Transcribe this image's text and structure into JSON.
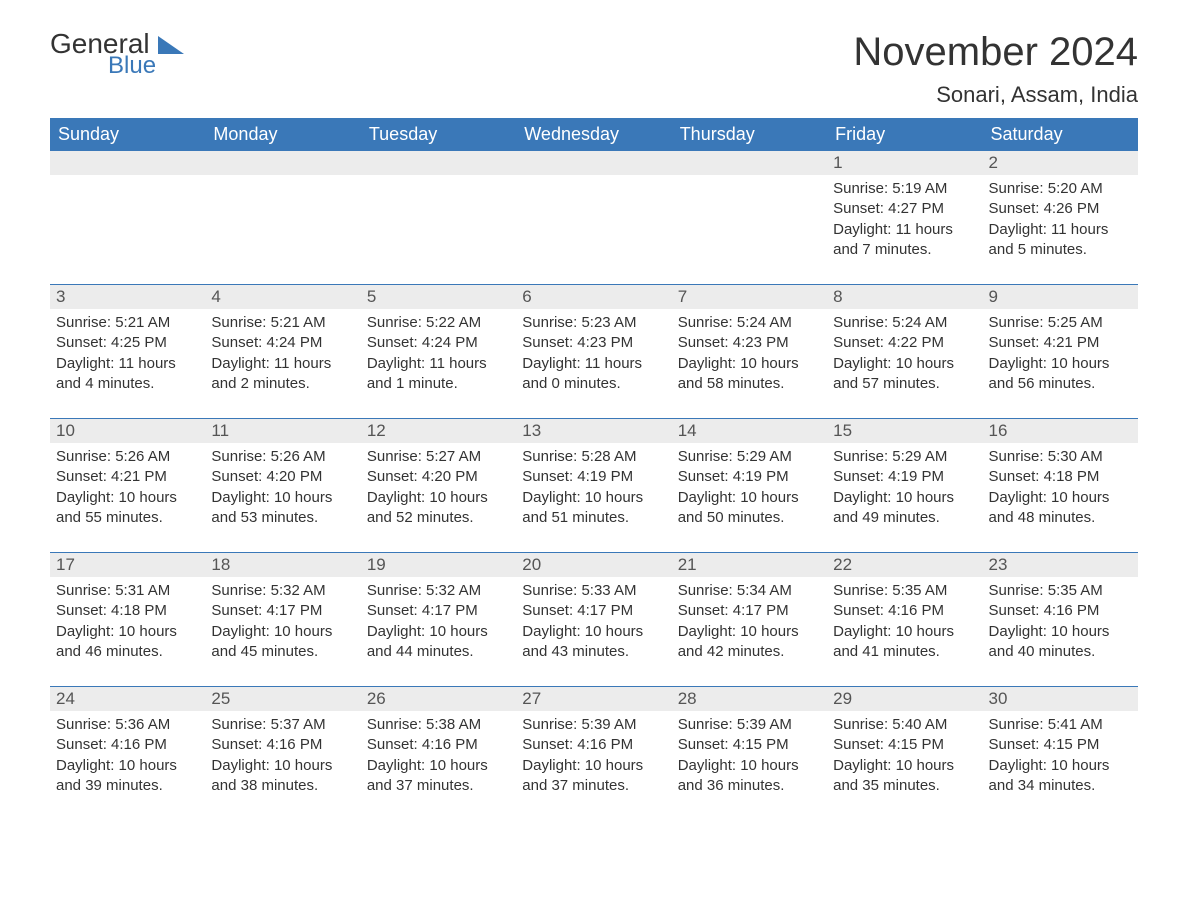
{
  "logo": {
    "general": "General",
    "blue": "Blue",
    "accent_color": "#3a78b8"
  },
  "title": "November 2024",
  "location": "Sonari, Assam, India",
  "colors": {
    "header_bg": "#3a78b8",
    "header_fg": "#ffffff",
    "daynum_bg": "#ececec",
    "text": "#333333",
    "page_bg": "#ffffff",
    "week_separator": "#3a78b8"
  },
  "typography": {
    "title_fontsize": 40,
    "location_fontsize": 22,
    "dow_fontsize": 18,
    "daynum_fontsize": 17,
    "body_fontsize": 15,
    "font_family": "Arial"
  },
  "days_of_week": [
    "Sunday",
    "Monday",
    "Tuesday",
    "Wednesday",
    "Thursday",
    "Friday",
    "Saturday"
  ],
  "weeks": [
    [
      null,
      null,
      null,
      null,
      null,
      {
        "d": "1",
        "sunrise": "Sunrise: 5:19 AM",
        "sunset": "Sunset: 4:27 PM",
        "daylight": "Daylight: 11 hours and 7 minutes."
      },
      {
        "d": "2",
        "sunrise": "Sunrise: 5:20 AM",
        "sunset": "Sunset: 4:26 PM",
        "daylight": "Daylight: 11 hours and 5 minutes."
      }
    ],
    [
      {
        "d": "3",
        "sunrise": "Sunrise: 5:21 AM",
        "sunset": "Sunset: 4:25 PM",
        "daylight": "Daylight: 11 hours and 4 minutes."
      },
      {
        "d": "4",
        "sunrise": "Sunrise: 5:21 AM",
        "sunset": "Sunset: 4:24 PM",
        "daylight": "Daylight: 11 hours and 2 minutes."
      },
      {
        "d": "5",
        "sunrise": "Sunrise: 5:22 AM",
        "sunset": "Sunset: 4:24 PM",
        "daylight": "Daylight: 11 hours and 1 minute."
      },
      {
        "d": "6",
        "sunrise": "Sunrise: 5:23 AM",
        "sunset": "Sunset: 4:23 PM",
        "daylight": "Daylight: 11 hours and 0 minutes."
      },
      {
        "d": "7",
        "sunrise": "Sunrise: 5:24 AM",
        "sunset": "Sunset: 4:23 PM",
        "daylight": "Daylight: 10 hours and 58 minutes."
      },
      {
        "d": "8",
        "sunrise": "Sunrise: 5:24 AM",
        "sunset": "Sunset: 4:22 PM",
        "daylight": "Daylight: 10 hours and 57 minutes."
      },
      {
        "d": "9",
        "sunrise": "Sunrise: 5:25 AM",
        "sunset": "Sunset: 4:21 PM",
        "daylight": "Daylight: 10 hours and 56 minutes."
      }
    ],
    [
      {
        "d": "10",
        "sunrise": "Sunrise: 5:26 AM",
        "sunset": "Sunset: 4:21 PM",
        "daylight": "Daylight: 10 hours and 55 minutes."
      },
      {
        "d": "11",
        "sunrise": "Sunrise: 5:26 AM",
        "sunset": "Sunset: 4:20 PM",
        "daylight": "Daylight: 10 hours and 53 minutes."
      },
      {
        "d": "12",
        "sunrise": "Sunrise: 5:27 AM",
        "sunset": "Sunset: 4:20 PM",
        "daylight": "Daylight: 10 hours and 52 minutes."
      },
      {
        "d": "13",
        "sunrise": "Sunrise: 5:28 AM",
        "sunset": "Sunset: 4:19 PM",
        "daylight": "Daylight: 10 hours and 51 minutes."
      },
      {
        "d": "14",
        "sunrise": "Sunrise: 5:29 AM",
        "sunset": "Sunset: 4:19 PM",
        "daylight": "Daylight: 10 hours and 50 minutes."
      },
      {
        "d": "15",
        "sunrise": "Sunrise: 5:29 AM",
        "sunset": "Sunset: 4:19 PM",
        "daylight": "Daylight: 10 hours and 49 minutes."
      },
      {
        "d": "16",
        "sunrise": "Sunrise: 5:30 AM",
        "sunset": "Sunset: 4:18 PM",
        "daylight": "Daylight: 10 hours and 48 minutes."
      }
    ],
    [
      {
        "d": "17",
        "sunrise": "Sunrise: 5:31 AM",
        "sunset": "Sunset: 4:18 PM",
        "daylight": "Daylight: 10 hours and 46 minutes."
      },
      {
        "d": "18",
        "sunrise": "Sunrise: 5:32 AM",
        "sunset": "Sunset: 4:17 PM",
        "daylight": "Daylight: 10 hours and 45 minutes."
      },
      {
        "d": "19",
        "sunrise": "Sunrise: 5:32 AM",
        "sunset": "Sunset: 4:17 PM",
        "daylight": "Daylight: 10 hours and 44 minutes."
      },
      {
        "d": "20",
        "sunrise": "Sunrise: 5:33 AM",
        "sunset": "Sunset: 4:17 PM",
        "daylight": "Daylight: 10 hours and 43 minutes."
      },
      {
        "d": "21",
        "sunrise": "Sunrise: 5:34 AM",
        "sunset": "Sunset: 4:17 PM",
        "daylight": "Daylight: 10 hours and 42 minutes."
      },
      {
        "d": "22",
        "sunrise": "Sunrise: 5:35 AM",
        "sunset": "Sunset: 4:16 PM",
        "daylight": "Daylight: 10 hours and 41 minutes."
      },
      {
        "d": "23",
        "sunrise": "Sunrise: 5:35 AM",
        "sunset": "Sunset: 4:16 PM",
        "daylight": "Daylight: 10 hours and 40 minutes."
      }
    ],
    [
      {
        "d": "24",
        "sunrise": "Sunrise: 5:36 AM",
        "sunset": "Sunset: 4:16 PM",
        "daylight": "Daylight: 10 hours and 39 minutes."
      },
      {
        "d": "25",
        "sunrise": "Sunrise: 5:37 AM",
        "sunset": "Sunset: 4:16 PM",
        "daylight": "Daylight: 10 hours and 38 minutes."
      },
      {
        "d": "26",
        "sunrise": "Sunrise: 5:38 AM",
        "sunset": "Sunset: 4:16 PM",
        "daylight": "Daylight: 10 hours and 37 minutes."
      },
      {
        "d": "27",
        "sunrise": "Sunrise: 5:39 AM",
        "sunset": "Sunset: 4:16 PM",
        "daylight": "Daylight: 10 hours and 37 minutes."
      },
      {
        "d": "28",
        "sunrise": "Sunrise: 5:39 AM",
        "sunset": "Sunset: 4:15 PM",
        "daylight": "Daylight: 10 hours and 36 minutes."
      },
      {
        "d": "29",
        "sunrise": "Sunrise: 5:40 AM",
        "sunset": "Sunset: 4:15 PM",
        "daylight": "Daylight: 10 hours and 35 minutes."
      },
      {
        "d": "30",
        "sunrise": "Sunrise: 5:41 AM",
        "sunset": "Sunset: 4:15 PM",
        "daylight": "Daylight: 10 hours and 34 minutes."
      }
    ]
  ]
}
